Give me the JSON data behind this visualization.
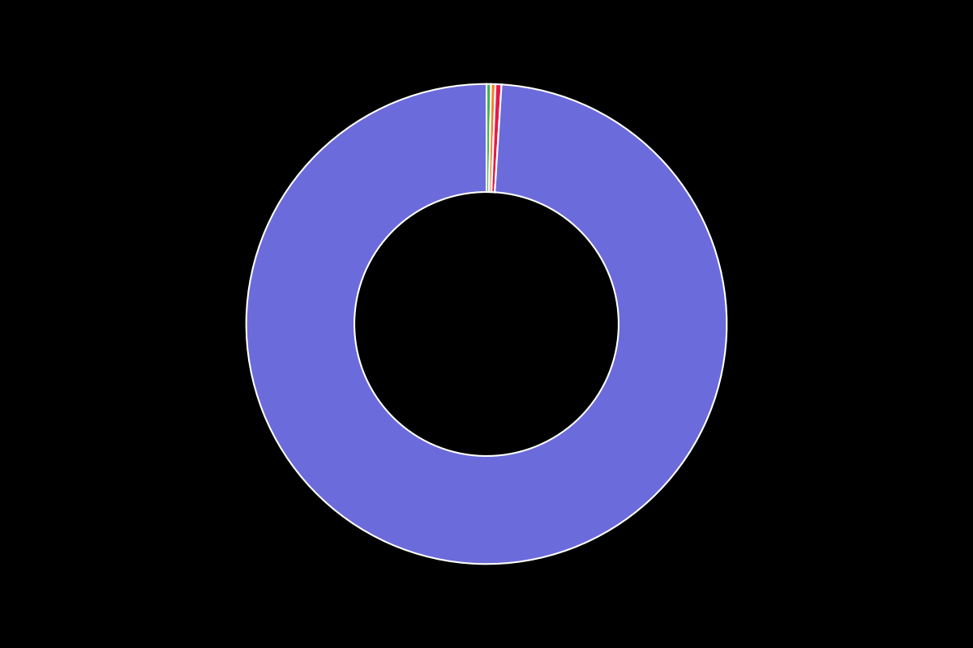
{
  "values": [
    0.3,
    0.3,
    0.4,
    99.0
  ],
  "colors": [
    "#3cb44b",
    "#f58231",
    "#e6194b",
    "#6b6bdb"
  ],
  "legend_labels": [
    "",
    "",
    "",
    ""
  ],
  "background_color": "#000000",
  "wedge_edge_color": "#ffffff",
  "wedge_linewidth": 1.5,
  "donut_width": 0.45,
  "startangle": 90,
  "figsize": [
    12,
    8
  ],
  "dpi": 100
}
